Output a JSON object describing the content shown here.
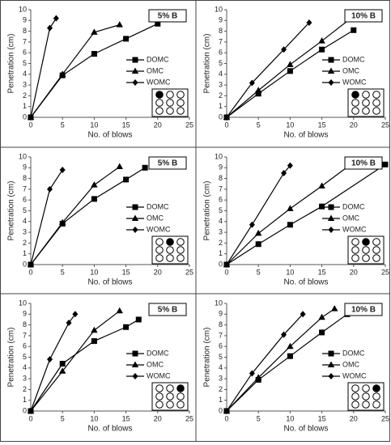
{
  "chart_data": [
    {
      "type": "line",
      "title": "5% B",
      "xlabel": "No. of blows",
      "ylabel": "Penetration (cm)",
      "xlim": [
        0,
        25
      ],
      "ylim": [
        0,
        10
      ],
      "xticks": [
        0,
        5,
        10,
        15,
        20,
        25
      ],
      "yticks": [
        0,
        1,
        2,
        3,
        4,
        5,
        6,
        7,
        8,
        9,
        10
      ],
      "grid": false,
      "legend": "right",
      "series": [
        {
          "name": "DOMC",
          "color": "#000000",
          "marker": "square",
          "x": [
            0,
            5,
            10,
            15,
            20
          ],
          "values": [
            0,
            3.9,
            5.9,
            7.3,
            8.7
          ]
        },
        {
          "name": "OMC",
          "color": "#000000",
          "marker": "triangle",
          "x": [
            0,
            5,
            10,
            14
          ],
          "values": [
            0,
            4.0,
            7.9,
            8.6
          ]
        },
        {
          "name": "WOMC",
          "color": "#000000",
          "marker": "diamond",
          "x": [
            0,
            3,
            4
          ],
          "values": [
            0,
            8.3,
            9.2
          ]
        }
      ]
    },
    {
      "type": "line",
      "title": "10% B",
      "xlabel": "No. of blows",
      "ylabel": "Penetration (cm)",
      "xlim": [
        0,
        25
      ],
      "ylim": [
        0,
        10
      ],
      "xticks": [
        0,
        5,
        10,
        15,
        20,
        25
      ],
      "yticks": [
        0,
        1,
        2,
        3,
        4,
        5,
        6,
        7,
        8,
        9,
        10
      ],
      "grid": false,
      "legend": "right",
      "series": [
        {
          "name": "DOMC",
          "color": "#000000",
          "marker": "square",
          "x": [
            0,
            5,
            10,
            15,
            20
          ],
          "values": [
            0,
            2.2,
            4.3,
            6.3,
            8.1
          ]
        },
        {
          "name": "OMC",
          "color": "#000000",
          "marker": "triangle",
          "x": [
            0,
            5,
            10,
            15,
            20
          ],
          "values": [
            0,
            2.5,
            4.9,
            7.1,
            9.4
          ]
        },
        {
          "name": "WOMC",
          "color": "#000000",
          "marker": "diamond",
          "x": [
            0,
            4,
            9,
            13
          ],
          "values": [
            0,
            3.2,
            6.3,
            8.8
          ]
        }
      ]
    },
    {
      "type": "line",
      "title": "5% B",
      "xlabel": "No. of blows",
      "ylabel": "Penetration (cm)",
      "xlim": [
        0,
        25
      ],
      "ylim": [
        0,
        10
      ],
      "xticks": [
        0,
        5,
        10,
        15,
        20,
        25
      ],
      "yticks": [
        0,
        1,
        2,
        3,
        4,
        5,
        6,
        7,
        8,
        9,
        10
      ],
      "grid": false,
      "legend": "right",
      "series": [
        {
          "name": "DOMC",
          "color": "#000000",
          "marker": "square",
          "x": [
            0,
            5,
            10,
            15,
            18
          ],
          "values": [
            0,
            3.8,
            6.1,
            7.9,
            9.0
          ]
        },
        {
          "name": "OMC",
          "color": "#000000",
          "marker": "triangle",
          "x": [
            0,
            5,
            10,
            14
          ],
          "values": [
            0,
            3.9,
            7.4,
            9.1
          ]
        },
        {
          "name": "WOMC",
          "color": "#000000",
          "marker": "diamond",
          "x": [
            0,
            3,
            5
          ],
          "values": [
            0,
            7.0,
            8.8
          ]
        }
      ]
    },
    {
      "type": "line",
      "title": "10% B",
      "xlabel": "No. of blows",
      "ylabel": "Penetration (cm)",
      "xlim": [
        0,
        25
      ],
      "ylim": [
        0,
        10
      ],
      "xticks": [
        0,
        5,
        10,
        15,
        20,
        25
      ],
      "yticks": [
        0,
        1,
        2,
        3,
        4,
        5,
        6,
        7,
        8,
        9,
        10
      ],
      "grid": false,
      "legend": "right",
      "series": [
        {
          "name": "DOMC",
          "color": "#000000",
          "marker": "square",
          "x": [
            0,
            5,
            10,
            15,
            25
          ],
          "values": [
            0,
            1.9,
            3.7,
            5.4,
            9.3
          ]
        },
        {
          "name": "OMC",
          "color": "#000000",
          "marker": "triangle",
          "x": [
            0,
            5,
            10,
            15,
            20
          ],
          "values": [
            0,
            2.9,
            5.2,
            7.3,
            9.5
          ]
        },
        {
          "name": "WOMC",
          "color": "#000000",
          "marker": "diamond",
          "x": [
            0,
            4,
            9,
            10
          ],
          "values": [
            0,
            3.7,
            8.5,
            9.2
          ]
        }
      ]
    },
    {
      "type": "line",
      "title": "5% B",
      "xlabel": "No. of blows",
      "ylabel": "Penetration (cm)",
      "xlim": [
        0,
        25
      ],
      "ylim": [
        0,
        10
      ],
      "xticks": [
        0,
        5,
        10,
        15,
        20,
        25
      ],
      "yticks": [
        0,
        1,
        2,
        3,
        4,
        5,
        6,
        7,
        8,
        9,
        10
      ],
      "grid": false,
      "legend": "right",
      "series": [
        {
          "name": "DOMC",
          "color": "#000000",
          "marker": "square",
          "x": [
            0,
            5,
            10,
            15,
            17
          ],
          "values": [
            0,
            4.4,
            6.5,
            7.8,
            8.5
          ]
        },
        {
          "name": "OMC",
          "color": "#000000",
          "marker": "triangle",
          "x": [
            0,
            5,
            10,
            14
          ],
          "values": [
            0,
            3.7,
            7.5,
            9.3
          ]
        },
        {
          "name": "WOMC",
          "color": "#000000",
          "marker": "diamond",
          "x": [
            0,
            3,
            6,
            7
          ],
          "values": [
            0,
            4.8,
            8.2,
            9.0
          ]
        }
      ]
    },
    {
      "type": "line",
      "title": "10% B",
      "xlabel": "No. of blows",
      "ylabel": "Penetration (cm)",
      "xlim": [
        0,
        25
      ],
      "ylim": [
        0,
        10
      ],
      "xticks": [
        0,
        5,
        10,
        15,
        20,
        25
      ],
      "yticks": [
        0,
        1,
        2,
        3,
        4,
        5,
        6,
        7,
        8,
        9,
        10
      ],
      "grid": false,
      "legend": "right",
      "series": [
        {
          "name": "DOMC",
          "color": "#000000",
          "marker": "square",
          "x": [
            0,
            5,
            10,
            15,
            19
          ],
          "values": [
            0,
            2.9,
            5.1,
            7.3,
            9.0
          ]
        },
        {
          "name": "OMC",
          "color": "#000000",
          "marker": "triangle",
          "x": [
            0,
            5,
            10,
            15,
            17
          ],
          "values": [
            0,
            3.1,
            6.0,
            8.7,
            9.5
          ]
        },
        {
          "name": "WOMC",
          "color": "#000000",
          "marker": "diamond",
          "x": [
            0,
            4,
            9,
            12
          ],
          "values": [
            0,
            3.5,
            7.1,
            9.0
          ]
        }
      ]
    }
  ]
}
